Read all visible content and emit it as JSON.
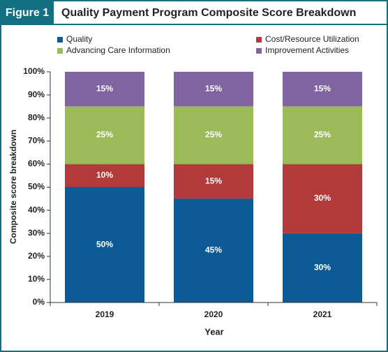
{
  "chart_data": {
    "type": "stacked_bar",
    "figure_label": "Figure 1",
    "title": "Quality Payment Program Composite Score Breakdown",
    "x_label": "Year",
    "y_label": "Composite score breakdown",
    "categories": [
      "2019",
      "2020",
      "2021"
    ],
    "series": [
      {
        "name": "Quality",
        "color": "#0b5a96",
        "values": [
          50,
          45,
          30
        ],
        "value_labels": [
          "50%",
          "45%",
          "30%"
        ]
      },
      {
        "name": "Cost/Resource Utilization",
        "color": "#b23a3a",
        "values": [
          10,
          15,
          30
        ],
        "value_labels": [
          "10%",
          "15%",
          "30%"
        ]
      },
      {
        "name": "Advancing Care Information",
        "color": "#9bbb59",
        "values": [
          25,
          25,
          25
        ],
        "value_labels": [
          "25%",
          "25%",
          "25%"
        ]
      },
      {
        "name": "Improvement Activities",
        "color": "#8064a2",
        "values": [
          15,
          15,
          15
        ],
        "value_labels": [
          "15%",
          "15%",
          "15%"
        ]
      }
    ],
    "ylim": [
      0,
      100
    ],
    "yticks": [
      {
        "value": 0,
        "label": "0%"
      },
      {
        "value": 10,
        "label": "10%"
      },
      {
        "value": 20,
        "label": "20%"
      },
      {
        "value": 30,
        "label": "30%"
      },
      {
        "value": 40,
        "label": "40%"
      },
      {
        "value": 50,
        "label": "50%"
      },
      {
        "value": 60,
        "label": "60%"
      },
      {
        "value": 70,
        "label": "70%"
      },
      {
        "value": 80,
        "label": "80%"
      },
      {
        "value": 90,
        "label": "90%"
      },
      {
        "value": 100,
        "label": "100%"
      }
    ],
    "grid": false
  }
}
